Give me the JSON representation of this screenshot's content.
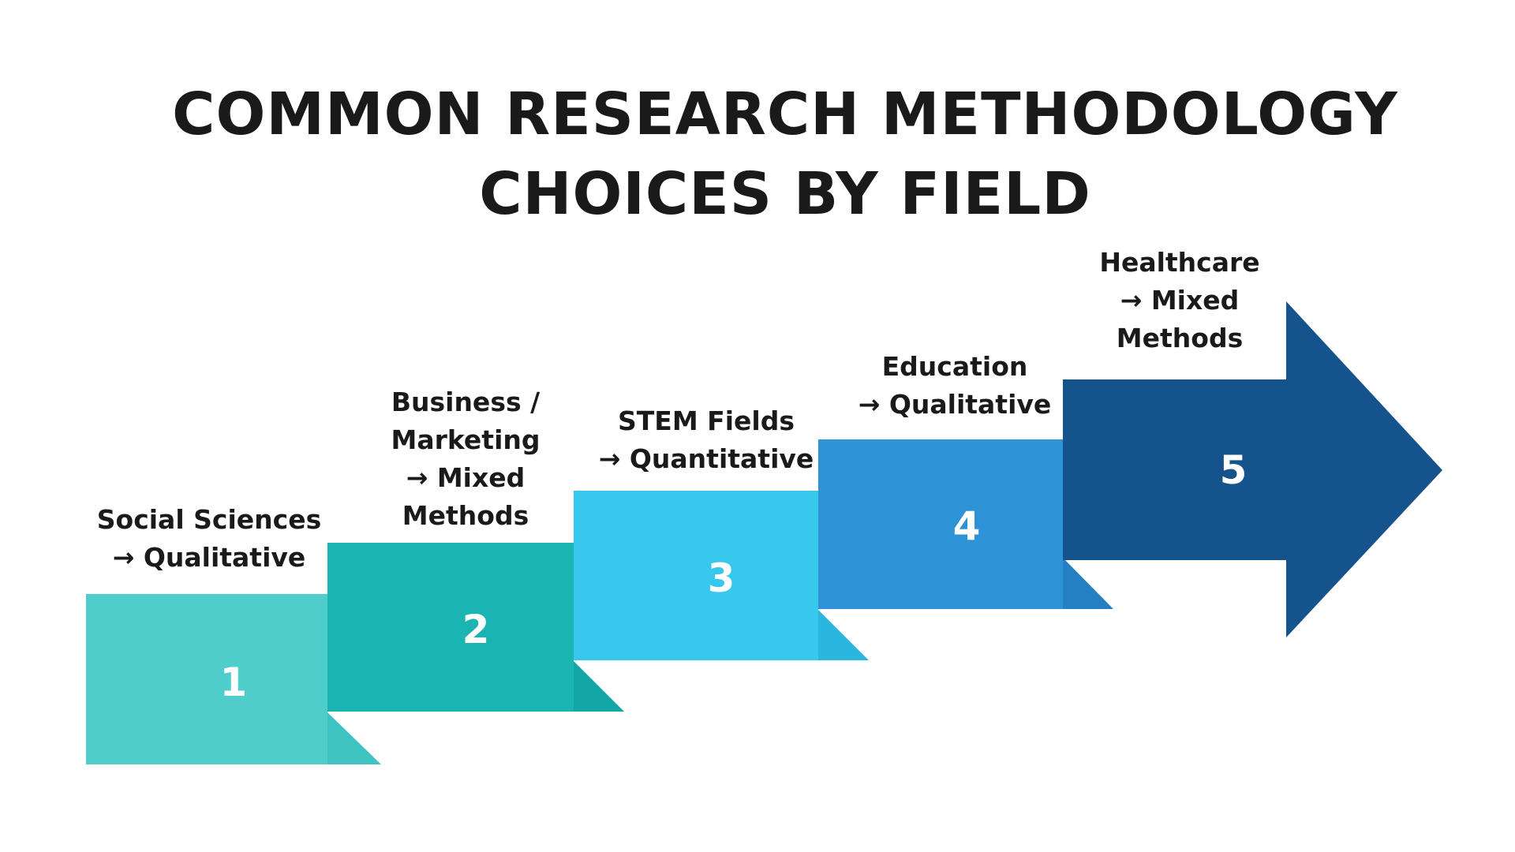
{
  "title": {
    "line1": "COMMON RESEARCH METHODOLOGY",
    "line2": "CHOICES BY FIELD"
  },
  "steps": [
    {
      "number": "1",
      "label_lines": [
        "Social Sciences",
        "→ Qualitative"
      ],
      "color": "#4ECDCB",
      "fold_color": "#3FC3C0"
    },
    {
      "number": "2",
      "label_lines": [
        "Business /",
        "Marketing",
        "→ Mixed",
        "Methods"
      ],
      "color": "#1AB5B3",
      "fold_color": "#14A6A4"
    },
    {
      "number": "3",
      "label_lines": [
        "STEM Fields",
        "→ Quantitative"
      ],
      "color": "#38C8EE",
      "fold_color": "#2BB6DE"
    },
    {
      "number": "4",
      "label_lines": [
        "Education",
        "→ Qualitative"
      ],
      "color": "#2E93D6",
      "fold_color": "#2480C2"
    },
    {
      "number": "5",
      "label_lines": [
        "Healthcare",
        "→ Mixed",
        "Methods"
      ],
      "color": "#14538B",
      "fold_color": "#14538B"
    }
  ]
}
